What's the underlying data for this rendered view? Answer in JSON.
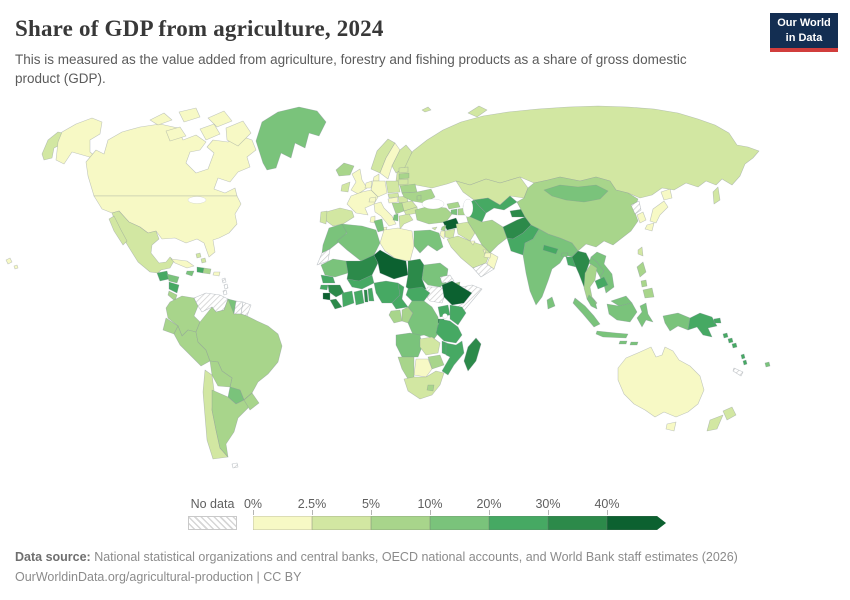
{
  "header": {
    "title": "Share of GDP from agriculture, 2024",
    "subtitle": "This is measured as the value added from agriculture, forestry and fishing products as a share of gross domestic product (GDP).",
    "logo": {
      "line1": "Our World",
      "line2": "in Data",
      "bg_color": "#132e52",
      "accent_color": "#d13d3c"
    }
  },
  "legend": {
    "no_data_label": "No data"
  },
  "footer": {
    "source_label": "Data source:",
    "source_text": " National statistical organizations and central banks, OECD national accounts, and World Bank staff estimates (2026)",
    "license_text": "OurWorldinData.org/agricultural-production | CC BY"
  },
  "chart_data": {
    "type": "heatmap",
    "subtype": "choropleth-world-map",
    "title": "Share of GDP from agriculture, 2024",
    "unit": "% of GDP",
    "bin_edges": [
      "0%",
      "2.5%",
      "5%",
      "10%",
      "20%",
      "30%",
      "40%"
    ],
    "bin_ranges": [
      "0-2.5%",
      "2.5-5%",
      "5-10%",
      "10-20%",
      "20-30%",
      "30-40%",
      ">40%"
    ],
    "bin_colors": [
      "#f7f9c5",
      "#d2e7a2",
      "#a8d58b",
      "#7ac37b",
      "#46a963",
      "#2c8a4a",
      "#0c6130"
    ],
    "no_data_key": "nd",
    "border_color": "#87929a",
    "ocean_color": "#ffffff",
    "regions": {
      "canada": 0,
      "usa": 0,
      "greenland": 3,
      "mexico": 1,
      "guatemala": 4,
      "honduras": 3,
      "nicaragua": 4,
      "costa-rica": 2,
      "panama": 2,
      "cuba": 0,
      "jamaica": 3,
      "haiti": 4,
      "dominican-republic": 2,
      "puerto-rico": 0,
      "bahamas": 1,
      "lesser-antilles": "nd",
      "colombia": 2,
      "venezuela": "nd",
      "guyana": 3,
      "suriname": "nd",
      "french-guiana": "nd",
      "ecuador": 2,
      "peru": 2,
      "brazil": 2,
      "bolivia": 2,
      "paraguay": 3,
      "chile": 1,
      "argentina": 2,
      "uruguay": 2,
      "falkland": "nd",
      "iceland": 2,
      "ireland": 1,
      "uk": 0,
      "norway": 1,
      "sweden": 0,
      "finland": 1,
      "denmark": 0,
      "benelux": 0,
      "estonia": 1,
      "latvia": 2,
      "lithuania": 1,
      "belarus": 2,
      "poland": 1,
      "germany": 0,
      "france": 0,
      "spain": 1,
      "portugal": 1,
      "italy": 0,
      "switzerland": 0,
      "czechia": 1,
      "austria": 0,
      "hungary": 1,
      "ukraine": 2,
      "moldova": 2,
      "romania": 1,
      "serbia": 2,
      "bulgaria": 1,
      "albania": 3,
      "greece": 1,
      "russia": 1,
      "kazakhstan": 1,
      "uzbekistan": 4,
      "turkmenistan": 4,
      "kyrgyzstan": 3,
      "tajikistan": 5,
      "georgia": 2,
      "armenia": 3,
      "azerbaijan": 2,
      "turkey": 2,
      "cyprus": 1,
      "syria": 6,
      "lebanon": 2,
      "israel": 0,
      "jordan": 1,
      "iraq": 1,
      "saudi-arabia": 1,
      "yemen": "nd",
      "oman": 0,
      "uae": 0,
      "kuwait": 0,
      "qatar": 0,
      "iran": 2,
      "afghanistan": 5,
      "pakistan": 4,
      "india": 3,
      "nepal": 4,
      "bhutan": 3,
      "bangladesh": 4,
      "sri-lanka": 3,
      "china": 2,
      "mongolia": 3,
      "north-korea": "nd",
      "south-korea": 0,
      "japan": 0,
      "taiwan": 1,
      "myanmar": 5,
      "laos": 3,
      "vietnam": 3,
      "thailand": 2,
      "cambodia": 4,
      "malaysia": 3,
      "philippines": 2,
      "indonesia": 3,
      "papua-new-guinea": 4,
      "solomon-islands": 4,
      "vanuatu": 4,
      "fiji": 3,
      "new-caledonia": "nd",
      "morocco": 3,
      "western-sahara": "nd",
      "algeria": 3,
      "tunisia": 3,
      "libya": 0,
      "egypt": 3,
      "mauritania": 3,
      "mali": 5,
      "niger": 6,
      "chad": 5,
      "sudan": 3,
      "south-sudan": "nd",
      "eritrea": "nd",
      "ethiopia": 6,
      "somalia": "nd",
      "djibouti": 2,
      "senegal": 4,
      "guinea-bissau": 4,
      "guinea": 5,
      "sierra-leone": 6,
      "liberia": 5,
      "ivory-coast": 4,
      "ghana": 4,
      "togo": 5,
      "benin": 4,
      "burkina-faso": 4,
      "nigeria": 4,
      "cameroon": 4,
      "central-african-republic": 4,
      "gabon": 2,
      "congo": 2,
      "drc": 3,
      "uganda": 4,
      "kenya": 4,
      "rwanda": 5,
      "burundi": 5,
      "tanzania": 4,
      "angola": 3,
      "zambia": 1,
      "malawi": 4,
      "mozambique": 4,
      "zimbabwe": 2,
      "botswana": 0,
      "namibia": 2,
      "south-africa": 1,
      "lesotho": 2,
      "madagascar": 5,
      "australia": 0,
      "new-zealand": 1
    }
  }
}
